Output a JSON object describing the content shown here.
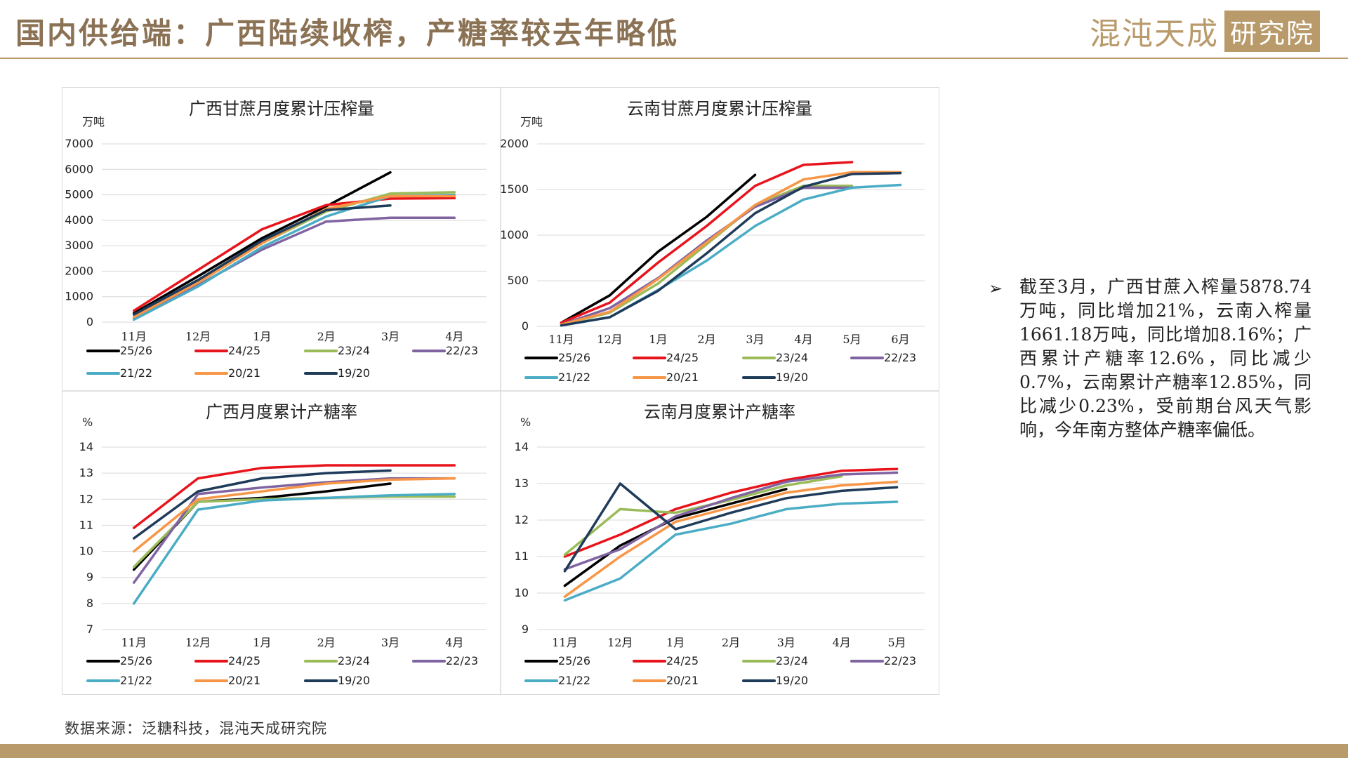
{
  "header": {
    "title": "国内供给端：广西陆续收榨，产糖率较去年略低",
    "logo_main": "混沌天成",
    "logo_box": "研究院"
  },
  "colors": {
    "accent": "#b99a6a",
    "title": "#8b7255",
    "series": {
      "25/26": "#000000",
      "24/25": "#e8141c",
      "23/24": "#9bbb59",
      "22/23": "#8064a2",
      "21/22": "#4bacc6",
      "20/21": "#f79646",
      "19/20": "#1f3b5a"
    }
  },
  "bullet": {
    "icon": "arrowhead-icon",
    "text": "截至3月，广西甘蔗入榨量5878.74万吨，同比增加21%，云南入榨量1661.18万吨，同比增加8.16%；广西累计产糖率12.6%，同比减少0.7%，云南累计产糖率12.85%，同比减少0.23%，受前期台风天气影响，今年南方整体产糖率偏低。"
  },
  "source": "数据来源：泛糖科技，混沌天成研究院",
  "chart_data": [
    {
      "type": "line",
      "title": "广西甘蔗月度累计压榨量",
      "ylabel": "万吨",
      "categories": [
        "11月",
        "12月",
        "1月",
        "2月",
        "3月",
        "4月"
      ],
      "ylim": [
        0,
        7000
      ],
      "yticks": [
        0,
        1000,
        2000,
        3000,
        4000,
        5000,
        6000,
        7000
      ],
      "grid": true,
      "legend": "bottom",
      "series": [
        {
          "name": "25/26",
          "values": [
            350,
            1800,
            3300,
            4550,
            5880,
            null
          ]
        },
        {
          "name": "24/25",
          "values": [
            450,
            2050,
            3650,
            4600,
            4850,
            4870
          ]
        },
        {
          "name": "23/24",
          "values": [
            200,
            1600,
            3100,
            4350,
            5050,
            5100
          ]
        },
        {
          "name": "22/23",
          "values": [
            150,
            1450,
            2850,
            3950,
            4100,
            4100
          ]
        },
        {
          "name": "21/22",
          "values": [
            100,
            1400,
            2950,
            4150,
            4950,
            5000
          ]
        },
        {
          "name": "20/21",
          "values": [
            200,
            1550,
            3100,
            4450,
            4950,
            4950
          ]
        },
        {
          "name": "19/20",
          "values": [
            300,
            1650,
            3200,
            4400,
            4580,
            null
          ]
        }
      ]
    },
    {
      "type": "line",
      "title": "云南甘蔗月度累计压榨量",
      "ylabel": "万吨",
      "categories": [
        "11月",
        "12月",
        "1月",
        "2月",
        "3月",
        "4月",
        "5月",
        "6月"
      ],
      "ylim": [
        0,
        2000
      ],
      "yticks": [
        0,
        500,
        1000,
        1500,
        2000
      ],
      "grid": true,
      "legend": "bottom",
      "series": [
        {
          "name": "25/26",
          "values": [
            40,
            340,
            820,
            1200,
            1660,
            null,
            null,
            null
          ]
        },
        {
          "name": "24/25",
          "values": [
            40,
            260,
            700,
            1100,
            1540,
            1770,
            1800,
            null
          ]
        },
        {
          "name": "23/24",
          "values": [
            20,
            150,
            470,
            900,
            1330,
            1540,
            1540,
            null
          ]
        },
        {
          "name": "22/23",
          "values": [
            20,
            200,
            530,
            940,
            1310,
            1520,
            1520,
            null
          ]
        },
        {
          "name": "21/22",
          "values": [
            10,
            100,
            400,
            720,
            1100,
            1390,
            1520,
            1550
          ]
        },
        {
          "name": "20/21",
          "values": [
            20,
            160,
            520,
            920,
            1330,
            1610,
            1690,
            1690
          ]
        },
        {
          "name": "19/20",
          "values": [
            10,
            100,
            390,
            800,
            1240,
            1530,
            1670,
            1680
          ]
        }
      ]
    },
    {
      "type": "line",
      "title": "广西月度累计产糖率",
      "ylabel": "%",
      "categories": [
        "11月",
        "12月",
        "1月",
        "2月",
        "3月",
        "4月"
      ],
      "ylim": [
        7,
        14
      ],
      "yticks": [
        7,
        8,
        9,
        10,
        11,
        12,
        13,
        14
      ],
      "grid": true,
      "legend": "bottom",
      "series": [
        {
          "name": "25/26",
          "values": [
            9.3,
            11.9,
            12.05,
            12.3,
            12.6,
            null
          ]
        },
        {
          "name": "24/25",
          "values": [
            10.9,
            12.8,
            13.2,
            13.3,
            13.3,
            13.3
          ]
        },
        {
          "name": "23/24",
          "values": [
            9.4,
            11.9,
            12.0,
            12.05,
            12.1,
            12.1
          ]
        },
        {
          "name": "22/23",
          "values": [
            8.8,
            12.2,
            12.45,
            12.65,
            12.8,
            12.8
          ]
        },
        {
          "name": "21/22",
          "values": [
            8.0,
            11.6,
            11.95,
            12.05,
            12.15,
            12.2
          ]
        },
        {
          "name": "20/21",
          "values": [
            10.0,
            12.0,
            12.3,
            12.6,
            12.75,
            12.8
          ]
        },
        {
          "name": "19/20",
          "values": [
            10.5,
            12.3,
            12.8,
            13.0,
            13.1,
            null
          ]
        }
      ]
    },
    {
      "type": "line",
      "title": "云南月度累计产糖率",
      "ylabel": "%",
      "categories": [
        "11月",
        "12月",
        "1月",
        "2月",
        "3月",
        "4月",
        "5月"
      ],
      "ylim": [
        9,
        14
      ],
      "yticks": [
        9,
        10,
        11,
        12,
        13,
        14
      ],
      "grid": true,
      "legend": "bottom",
      "series": [
        {
          "name": "25/26",
          "values": [
            10.2,
            11.3,
            12.05,
            12.45,
            12.85,
            null,
            null
          ]
        },
        {
          "name": "24/25",
          "values": [
            11.0,
            11.6,
            12.3,
            12.75,
            13.1,
            13.35,
            13.4
          ]
        },
        {
          "name": "23/24",
          "values": [
            11.05,
            12.3,
            12.2,
            12.55,
            12.95,
            13.2,
            null
          ]
        },
        {
          "name": "22/23",
          "values": [
            10.65,
            11.2,
            12.1,
            12.6,
            13.05,
            13.25,
            13.3
          ]
        },
        {
          "name": "21/22",
          "values": [
            9.8,
            10.4,
            11.6,
            11.9,
            12.3,
            12.45,
            12.5
          ]
        },
        {
          "name": "20/21",
          "values": [
            9.9,
            11.0,
            11.95,
            12.35,
            12.75,
            12.95,
            13.05
          ]
        },
        {
          "name": "19/20",
          "values": [
            10.6,
            13.0,
            11.75,
            12.2,
            12.6,
            12.8,
            12.9
          ]
        }
      ]
    }
  ]
}
